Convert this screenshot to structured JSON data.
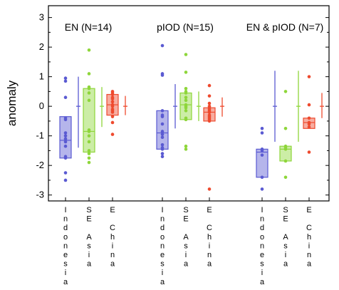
{
  "chart_data": {
    "type": "box",
    "ylabel": "anomaly",
    "ylim": [
      -3.2,
      3.4
    ],
    "yticks": [
      "-3",
      "-2",
      "-1",
      "0",
      "1",
      "2",
      "3"
    ],
    "ytick_values": [
      -3,
      -2,
      -1,
      0,
      1,
      2,
      3
    ],
    "categories": [
      "Indonesia",
      "SE Asia",
      "E China"
    ],
    "category_labels": [
      [
        "I",
        "n",
        "d",
        "o",
        "n",
        "e",
        "s",
        "i",
        "a"
      ],
      [
        "S",
        "E",
        "",
        "A",
        "s",
        "i",
        "a"
      ],
      [
        "E",
        "",
        "C",
        "h",
        "i",
        "n",
        "a"
      ]
    ],
    "colors": {
      "Indonesia": "#5a5ad2",
      "SE Asia": "#8ed63a",
      "E China": "#ee4a2e"
    },
    "groups": [
      {
        "title": "EN (N=14)",
        "series": [
          {
            "category": "Indonesia",
            "q1": -1.75,
            "q3": -0.35,
            "median": -1.15,
            "mean": 0.0,
            "ci": [
              -1.4,
              1.0
            ],
            "points": [
              0.95,
              0.85,
              0.3,
              -0.4,
              -0.45,
              -0.9,
              -1.0,
              -1.1,
              -1.2,
              -1.35,
              -1.7,
              -1.75,
              -2.25,
              -2.5
            ]
          },
          {
            "category": "SE Asia",
            "q1": -1.55,
            "q3": 0.6,
            "median": -0.85,
            "mean": 0.0,
            "ci": [
              -0.7,
              0.65
            ],
            "points": [
              1.9,
              1.1,
              0.65,
              0.6,
              0.45,
              0.2,
              -0.8,
              -0.85,
              -1.0,
              -1.2,
              -1.5,
              -1.6,
              -1.75,
              -1.9
            ]
          },
          {
            "category": "E China",
            "q1": -0.3,
            "q3": 0.4,
            "median": 0.05,
            "mean": 0.0,
            "ci": [
              -0.3,
              0.35
            ],
            "points": [
              0.5,
              0.45,
              0.4,
              0.3,
              0.25,
              0.15,
              0.05,
              0.0,
              -0.1,
              -0.15,
              -0.2,
              -0.35,
              -0.55,
              -0.95
            ]
          }
        ]
      },
      {
        "title": "pIOD (N=15)",
        "series": [
          {
            "category": "Indonesia",
            "q1": -1.45,
            "q3": -0.15,
            "median": -0.9,
            "mean": 0.0,
            "ci": [
              -0.75,
              0.75
            ],
            "points": [
              2.05,
              1.1,
              1.05,
              -0.15,
              -0.3,
              -0.35,
              -0.6,
              -0.85,
              -0.95,
              -1.05,
              -1.3,
              -1.4,
              -1.45,
              -1.6,
              -1.7
            ]
          },
          {
            "category": "SE Asia",
            "q1": -0.45,
            "q3": 0.45,
            "median": 0.05,
            "mean": 0.0,
            "ci": [
              -0.5,
              0.5
            ],
            "points": [
              1.75,
              1.15,
              0.6,
              0.5,
              0.45,
              0.3,
              0.2,
              0.05,
              0.0,
              -0.05,
              -0.15,
              -0.4,
              -0.45,
              -1.35,
              -1.45
            ]
          },
          {
            "category": "E China",
            "q1": -0.5,
            "q3": -0.05,
            "median": -0.2,
            "mean": 0.0,
            "ci": [
              -0.35,
              0.3
            ],
            "points": [
              0.7,
              0.35,
              0.1,
              0.0,
              -0.05,
              -0.1,
              -0.15,
              -0.2,
              -0.2,
              -0.3,
              -0.35,
              -0.4,
              -0.45,
              -0.5,
              -2.8
            ]
          }
        ]
      },
      {
        "title": "EN & pIOD (N=7)",
        "series": [
          {
            "category": "Indonesia",
            "q1": -2.4,
            "q3": -1.45,
            "median": -1.55,
            "mean": 0.0,
            "ci": [
              -1.2,
              1.2
            ],
            "points": [
              -0.75,
              -0.9,
              -1.45,
              -1.5,
              -1.65,
              -2.4,
              -2.8
            ]
          },
          {
            "category": "SE Asia",
            "q1": -1.85,
            "q3": -1.35,
            "median": -1.45,
            "mean": 0.0,
            "ci": [
              -1.2,
              1.2
            ],
            "points": [
              0.5,
              -0.75,
              -1.35,
              -1.4,
              -1.45,
              -1.85,
              -2.4
            ]
          },
          {
            "category": "E China",
            "q1": -0.75,
            "q3": -0.4,
            "median": -0.55,
            "mean": 0.0,
            "ci": [
              -0.4,
              0.45
            ],
            "points": [
              1.0,
              0.05,
              -0.4,
              -0.55,
              -0.6,
              -0.7,
              -1.55
            ]
          }
        ]
      }
    ]
  }
}
